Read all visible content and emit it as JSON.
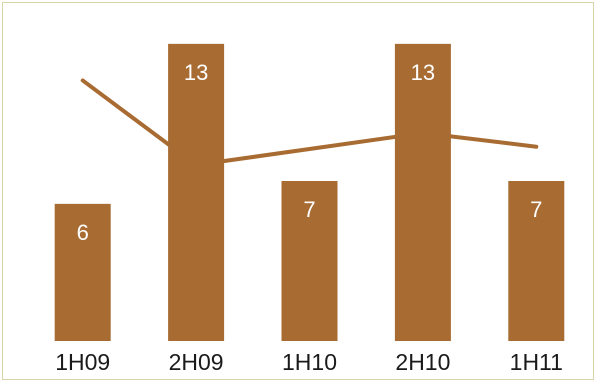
{
  "chart_data": {
    "type": "bar",
    "title": "",
    "xlabel": "",
    "ylabel": "",
    "categories": [
      "1H09",
      "2H09",
      "1H10",
      "2H10",
      "1H11"
    ],
    "series": [
      {
        "type": "bar",
        "values": [
          6,
          13,
          7,
          13,
          7
        ],
        "color": "#a86b32"
      },
      {
        "type": "line",
        "values": [
          11.4,
          7.7,
          8.4,
          9.1,
          8.5
        ],
        "color": "#a86b32"
      }
    ],
    "ylim": [
      0,
      14
    ],
    "grid": false,
    "legend": "none",
    "frame_border_color": "#d8d6a8"
  }
}
